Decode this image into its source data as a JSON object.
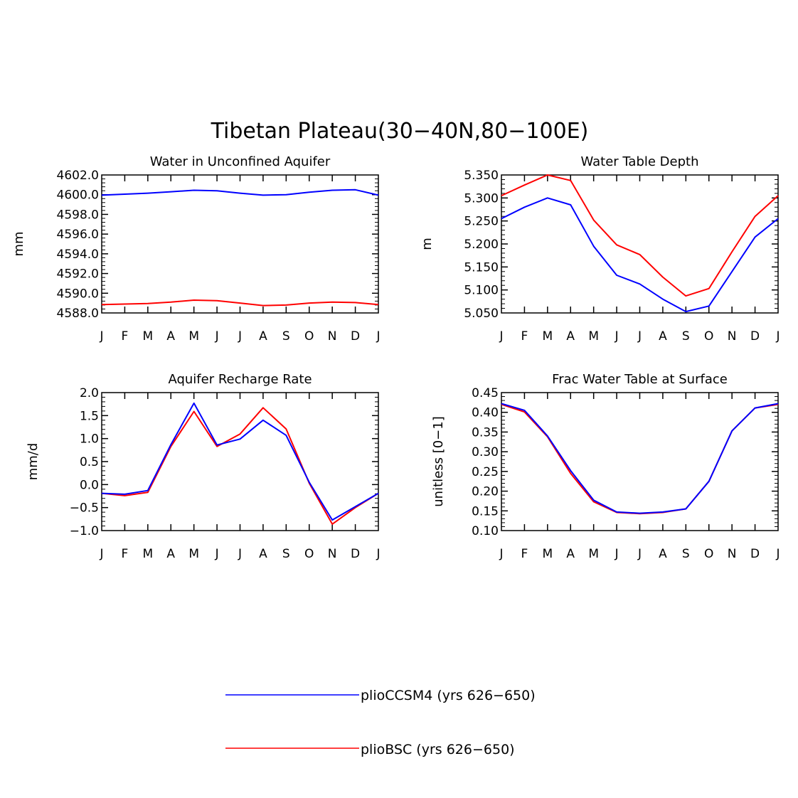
{
  "figure": {
    "title": "Tibetan Plateau(30−40N,80−100E)"
  },
  "colors": {
    "plioCCSM4": "#0000ff",
    "plioBSC": "#ff0000",
    "axes": "#000000"
  },
  "legend": {
    "placement": "bottom-center",
    "entries": [
      {
        "label": "plioCCSM4 (yrs 626−650)",
        "color": "#0000ff"
      },
      {
        "label": "plioBSC (yrs 626−650)",
        "color": "#ff0000"
      }
    ]
  },
  "chart_data": [
    {
      "type": "line",
      "title": "Water in Unconfined Aquifer",
      "ylabel": "mm",
      "categories": [
        "J",
        "F",
        "M",
        "A",
        "M",
        "J",
        "J",
        "A",
        "S",
        "O",
        "N",
        "D",
        "J"
      ],
      "ylim": [
        4588.0,
        4602.0
      ],
      "yticks": [
        4588.0,
        4590.0,
        4592.0,
        4594.0,
        4596.0,
        4598.0,
        4600.0,
        4602.0
      ],
      "yticklabels": [
        "4588.0",
        "4590.0",
        "4592.0",
        "4594.0",
        "4596.0",
        "4598.0",
        "4600.0",
        "4602.0"
      ],
      "yminor": 4,
      "series": [
        {
          "name": "plioCCSM4 (yrs 626−650)",
          "color": "#0000ff",
          "values": [
            4599.95,
            4600.05,
            4600.15,
            4600.3,
            4600.45,
            4600.4,
            4600.15,
            4599.95,
            4600.0,
            4600.25,
            4600.45,
            4600.5,
            4599.95
          ]
        },
        {
          "name": "plioBSC (yrs 626−650)",
          "color": "#ff0000",
          "values": [
            4588.85,
            4588.9,
            4588.95,
            4589.1,
            4589.3,
            4589.25,
            4589.0,
            4588.75,
            4588.8,
            4589.0,
            4589.1,
            4589.05,
            4588.85
          ]
        }
      ]
    },
    {
      "type": "line",
      "title": "Water Table Depth",
      "ylabel": "m",
      "categories": [
        "J",
        "F",
        "M",
        "A",
        "M",
        "J",
        "J",
        "A",
        "S",
        "O",
        "N",
        "D",
        "J"
      ],
      "ylim": [
        5.05,
        5.35
      ],
      "yticks": [
        5.05,
        5.1,
        5.15,
        5.2,
        5.25,
        5.3,
        5.35
      ],
      "yticklabels": [
        "5.050",
        "5.100",
        "5.150",
        "5.200",
        "5.250",
        "5.300",
        "5.350"
      ],
      "yminor": 4,
      "series": [
        {
          "name": "plioCCSM4 (yrs 626−650)",
          "color": "#0000ff",
          "values": [
            5.255,
            5.28,
            5.3,
            5.285,
            5.195,
            5.132,
            5.113,
            5.08,
            5.053,
            5.065,
            5.14,
            5.215,
            5.255
          ]
        },
        {
          "name": "plioBSC (yrs 626−650)",
          "color": "#ff0000",
          "values": [
            5.305,
            5.328,
            5.35,
            5.338,
            5.252,
            5.198,
            5.177,
            5.128,
            5.087,
            5.103,
            5.183,
            5.26,
            5.305
          ]
        }
      ]
    },
    {
      "type": "line",
      "title": "Aquifer Recharge Rate",
      "ylabel": "mm/d",
      "categories": [
        "J",
        "F",
        "M",
        "A",
        "M",
        "J",
        "J",
        "A",
        "S",
        "O",
        "N",
        "D",
        "J"
      ],
      "ylim": [
        -1.0,
        2.0
      ],
      "yticks": [
        -1.0,
        -0.5,
        0.0,
        0.5,
        1.0,
        1.5,
        2.0
      ],
      "yticklabels": [
        "−1.0",
        "−0.5",
        "0.0",
        "0.5",
        "1.0",
        "1.5",
        "2.0"
      ],
      "yminor": 4,
      "series": [
        {
          "name": "plioCCSM4 (yrs 626−650)",
          "color": "#0000ff",
          "values": [
            -0.19,
            -0.21,
            -0.13,
            0.87,
            1.77,
            0.86,
            0.99,
            1.4,
            1.07,
            0.05,
            -0.77,
            -0.48,
            -0.19
          ]
        },
        {
          "name": "plioBSC (yrs 626−650)",
          "color": "#ff0000",
          "values": [
            -0.19,
            -0.24,
            -0.17,
            0.83,
            1.59,
            0.83,
            1.1,
            1.67,
            1.21,
            0.03,
            -0.86,
            -0.5,
            -0.19
          ]
        }
      ]
    },
    {
      "type": "line",
      "title": "Frac Water Table at Surface",
      "ylabel": "unitless [0−1]",
      "categories": [
        "J",
        "F",
        "M",
        "A",
        "M",
        "J",
        "J",
        "A",
        "S",
        "O",
        "N",
        "D",
        "J"
      ],
      "ylim": [
        0.1,
        0.45
      ],
      "yticks": [
        0.1,
        0.15,
        0.2,
        0.25,
        0.3,
        0.35,
        0.4,
        0.45
      ],
      "yticklabels": [
        "0.10",
        "0.15",
        "0.20",
        "0.25",
        "0.30",
        "0.35",
        "0.40",
        "0.45"
      ],
      "yminor": 4,
      "series": [
        {
          "name": "plioCCSM4 (yrs 626−650)",
          "color": "#0000ff",
          "values": [
            0.422,
            0.405,
            0.34,
            0.252,
            0.177,
            0.147,
            0.144,
            0.147,
            0.155,
            0.225,
            0.353,
            0.411,
            0.422
          ]
        },
        {
          "name": "plioBSC (yrs 626−650)",
          "color": "#ff0000",
          "values": [
            0.42,
            0.401,
            0.338,
            0.245,
            0.173,
            0.146,
            0.143,
            0.146,
            0.155,
            0.225,
            0.353,
            0.411,
            0.42
          ]
        }
      ]
    }
  ]
}
